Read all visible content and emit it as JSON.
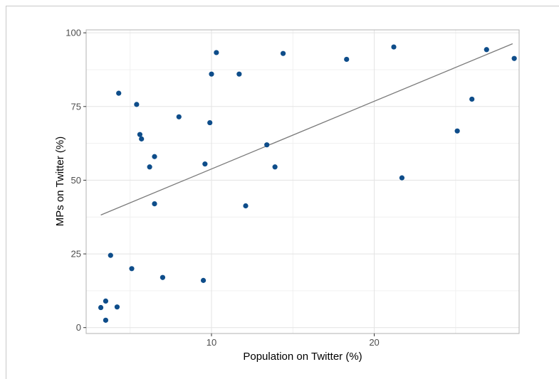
{
  "chart_data": {
    "type": "scatter",
    "xlabel": "Population on Twitter (%)",
    "ylabel": "MPs on Twitter (%)",
    "xlim": [
      2.3,
      28.9
    ],
    "ylim": [
      -2,
      101
    ],
    "x_ticks": [
      10,
      20
    ],
    "y_ticks": [
      0,
      25,
      50,
      75,
      100
    ],
    "grid": true,
    "point_color": "#0e4d8a",
    "trend_color": "#7a7a7a",
    "points": [
      {
        "x": 3.2,
        "y": 6.8
      },
      {
        "x": 3.5,
        "y": 9.0
      },
      {
        "x": 3.5,
        "y": 2.5
      },
      {
        "x": 3.8,
        "y": 24.5
      },
      {
        "x": 4.2,
        "y": 7.0
      },
      {
        "x": 4.3,
        "y": 79.5
      },
      {
        "x": 5.1,
        "y": 20.0
      },
      {
        "x": 5.4,
        "y": 75.7
      },
      {
        "x": 5.6,
        "y": 65.5
      },
      {
        "x": 5.7,
        "y": 64.0
      },
      {
        "x": 6.2,
        "y": 54.5
      },
      {
        "x": 6.5,
        "y": 58.0
      },
      {
        "x": 6.5,
        "y": 42.0
      },
      {
        "x": 7.0,
        "y": 17.0
      },
      {
        "x": 8.0,
        "y": 71.5
      },
      {
        "x": 9.5,
        "y": 16.0
      },
      {
        "x": 9.6,
        "y": 55.5
      },
      {
        "x": 9.9,
        "y": 69.5
      },
      {
        "x": 10.0,
        "y": 86.0
      },
      {
        "x": 10.3,
        "y": 93.3
      },
      {
        "x": 11.7,
        "y": 86.0
      },
      {
        "x": 12.1,
        "y": 41.3
      },
      {
        "x": 13.4,
        "y": 62.0
      },
      {
        "x": 13.9,
        "y": 54.5
      },
      {
        "x": 14.4,
        "y": 93.0
      },
      {
        "x": 18.3,
        "y": 91.0
      },
      {
        "x": 21.2,
        "y": 95.2
      },
      {
        "x": 21.7,
        "y": 50.8
      },
      {
        "x": 25.1,
        "y": 66.7
      },
      {
        "x": 26.0,
        "y": 77.5
      },
      {
        "x": 26.9,
        "y": 94.3
      },
      {
        "x": 28.6,
        "y": 91.3
      }
    ],
    "trend_line": [
      {
        "x": 3.2,
        "y": 38.2
      },
      {
        "x": 28.5,
        "y": 96.3
      }
    ]
  }
}
